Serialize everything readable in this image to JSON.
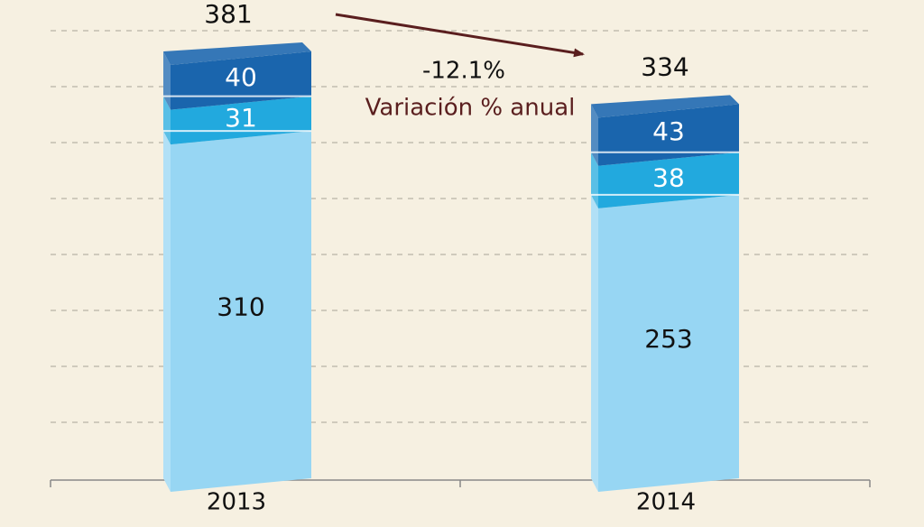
{
  "chart_data": {
    "type": "bar",
    "stacked": true,
    "categories": [
      "2013",
      "2014"
    ],
    "series": [
      {
        "values": [
          310,
          253
        ],
        "color": "#97d6f3"
      },
      {
        "values": [
          31,
          38
        ],
        "color": "#22a9de"
      },
      {
        "values": [
          40,
          43
        ],
        "color": "#1a65ad"
      }
    ],
    "totals": [
      "381",
      "334"
    ],
    "segment_labels": [
      [
        "310",
        "31",
        "40"
      ],
      [
        "253",
        "38",
        "43"
      ]
    ],
    "annotation": {
      "value": "-12.1%",
      "text": "Variación % anual",
      "color": "#5a1e1e"
    },
    "grid": true,
    "ylim": [
      0,
      381
    ]
  }
}
